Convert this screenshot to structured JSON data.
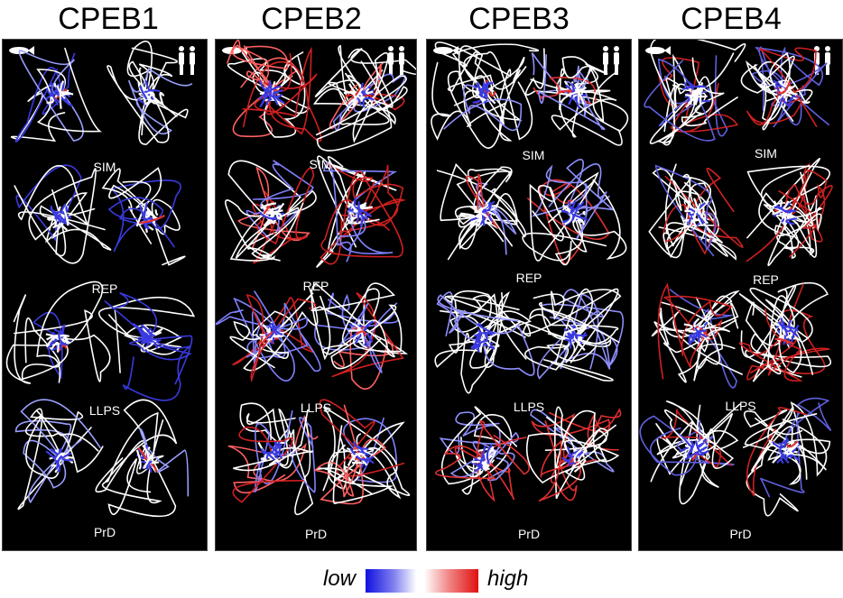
{
  "panels": [
    {
      "title": "CPEB1",
      "rows": [
        "SIM",
        "REP",
        "LLPS",
        "PrD"
      ]
    },
    {
      "title": "CPEB2",
      "rows": [
        "SIM",
        "REP",
        "LLPS",
        "PrD"
      ]
    },
    {
      "title": "CPEB3",
      "rows": [
        "SIM",
        "REP",
        "LLPS",
        "PrD"
      ]
    },
    {
      "title": "CPEB4",
      "rows": [
        "SIM",
        "REP",
        "LLPS",
        "PrD"
      ]
    }
  ],
  "legend": {
    "low_label": "low",
    "high_label": "high"
  },
  "icons": {
    "fish": "fish-icon",
    "human": "human-pair-icon"
  },
  "colors": {
    "low": "#1010e0",
    "mid": "#ffffff",
    "high": "#e01010",
    "background": "#000000"
  }
}
